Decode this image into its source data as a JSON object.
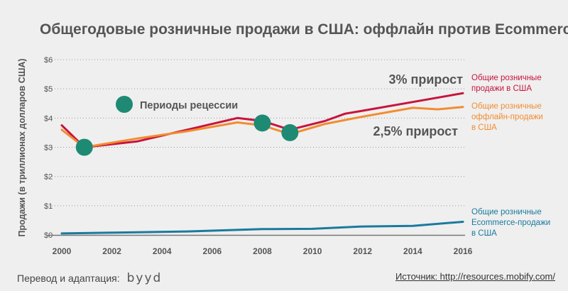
{
  "title": "Общегодовые розничные продажи в США: оффлайн против Ecommerce",
  "footer": {
    "credit_label": "Перевод и адаптация:",
    "credit_logo": "byyd",
    "source": "Источник: http://resources.mobify.com/"
  },
  "chart_data": {
    "type": "line",
    "title": "Общегодовые розничные продажи в США: оффлайн против Ecommerce",
    "ylabel": "Продажи (в триллионах долларов США)",
    "xlabel": "",
    "xlim": [
      2000,
      2016
    ],
    "ylim": [
      0,
      6
    ],
    "x_ticks": [
      2000,
      2002,
      2004,
      2006,
      2008,
      2010,
      2012,
      2014,
      2016
    ],
    "y_ticks": [
      {
        "value": 0,
        "label": "$0"
      },
      {
        "value": 1,
        "label": "$1"
      },
      {
        "value": 2,
        "label": "$2"
      },
      {
        "value": 3,
        "label": "$3"
      },
      {
        "value": 4,
        "label": "$4"
      },
      {
        "value": 5,
        "label": "$5"
      },
      {
        "value": 6,
        "label": "$6"
      }
    ],
    "grid": "horizontal-dotted",
    "series": [
      {
        "name": "Общие розничные продажи в США",
        "label_lines": [
          "Общие розничные",
          "продажи в США"
        ],
        "color": "#c8143c",
        "points": [
          [
            2000,
            3.75
          ],
          [
            2000.9,
            3.0
          ],
          [
            2003,
            3.2
          ],
          [
            2005,
            3.6
          ],
          [
            2007,
            4.0
          ],
          [
            2008,
            3.9
          ],
          [
            2009.1,
            3.6
          ],
          [
            2010.5,
            3.9
          ],
          [
            2011.3,
            4.15
          ],
          [
            2012,
            4.25
          ],
          [
            2014,
            4.55
          ],
          [
            2016,
            4.85
          ]
        ]
      },
      {
        "name": "Общие розничные оффлайн-продажи в США",
        "label_lines": [
          "Общие розничные",
          "оффлайн-продажи",
          "в США"
        ],
        "color": "#f28c30",
        "points": [
          [
            2000,
            3.6
          ],
          [
            2000.9,
            3.0
          ],
          [
            2003,
            3.3
          ],
          [
            2005,
            3.55
          ],
          [
            2007,
            3.85
          ],
          [
            2008,
            3.75
          ],
          [
            2009.1,
            3.45
          ],
          [
            2010.5,
            3.8
          ],
          [
            2012,
            4.05
          ],
          [
            2014,
            4.35
          ],
          [
            2015,
            4.3
          ],
          [
            2016,
            4.38
          ]
        ]
      },
      {
        "name": "Общие розничные Ecommerce-продажи в США",
        "label_lines": [
          "Общие розничные",
          "Ecommerce-продажи",
          "в США"
        ],
        "color": "#1a7a9e",
        "points": [
          [
            2000,
            0.05
          ],
          [
            2003,
            0.09
          ],
          [
            2005,
            0.12
          ],
          [
            2008,
            0.2
          ],
          [
            2010,
            0.21
          ],
          [
            2012,
            0.29
          ],
          [
            2014,
            0.31
          ],
          [
            2016,
            0.45
          ]
        ]
      }
    ],
    "recession_markers": [
      {
        "x": 2000.9,
        "y": 3.0
      },
      {
        "x": 2008,
        "y": 3.83
      },
      {
        "x": 2009.1,
        "y": 3.5
      }
    ],
    "recession_color": "#1e8a74",
    "legend": {
      "label": "Периоды рецессии",
      "placement": "top-left"
    },
    "annotations": [
      {
        "text": "3% прирост",
        "near_series": 0
      },
      {
        "text": "2,5% прирост",
        "near_series": 1
      }
    ]
  }
}
